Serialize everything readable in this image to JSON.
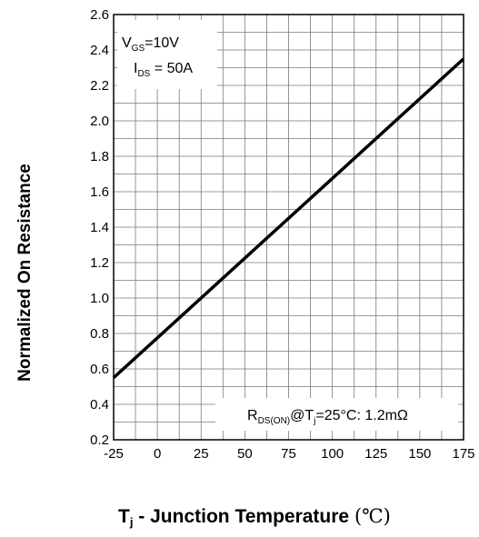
{
  "chart_data": {
    "type": "line",
    "xlabel_symbol": "T",
    "xlabel_sub": "j",
    "xlabel_text": " - Junction Temperature ",
    "xlabel_unit": "(℃)",
    "ylabel": "Normalized On Resistance",
    "xlim": [
      -25,
      175
    ],
    "ylim": [
      0.2,
      2.6
    ],
    "x_ticks": [
      "-25",
      "0",
      "25",
      "50",
      "75",
      "100",
      "125",
      "150",
      "175"
    ],
    "y_ticks": [
      "0.2",
      "0.4",
      "0.6",
      "0.8",
      "1.0",
      "1.2",
      "1.4",
      "1.6",
      "1.8",
      "2.0",
      "2.2",
      "2.4",
      "2.6"
    ],
    "grid": true,
    "series": [
      {
        "x": [
          -25,
          175
        ],
        "y": [
          0.55,
          2.35
        ],
        "color": "#000000"
      }
    ],
    "annotations": {
      "conditions": {
        "vgs_symbol": "V",
        "vgs_sub": "GS",
        "vgs_value": "=10V",
        "ids_symbol": "I",
        "ids_sub": "DS",
        "ids_value": " = 50A",
        "placement": "top-left"
      },
      "rds": {
        "symbol": "R",
        "sub": "DS(ON)",
        "at": "@T",
        "tj_sub": "j",
        "value": "=25°C: 1.2mΩ",
        "placement": "bottom-right"
      }
    }
  }
}
